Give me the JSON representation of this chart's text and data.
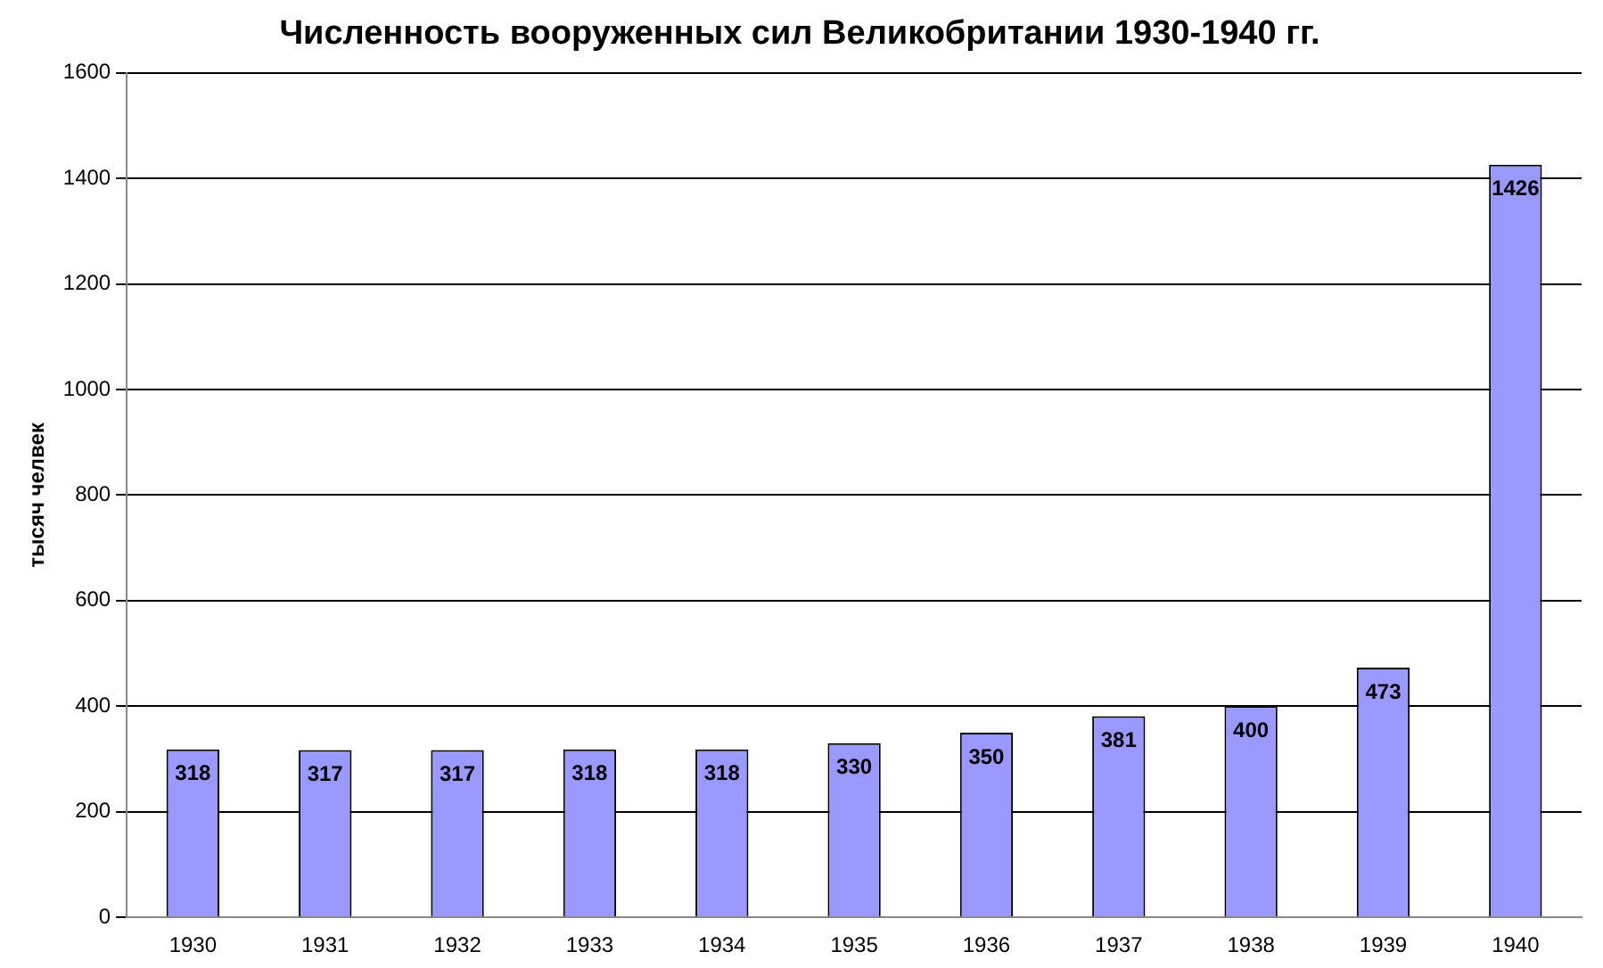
{
  "chart_data": {
    "type": "bar",
    "title": "Численность вооруженных сил Великобритании 1930-1940 гг.",
    "ylabel": "тысяч челвек",
    "categories": [
      "1930",
      "1931",
      "1932",
      "1933",
      "1934",
      "1935",
      "1936",
      "1937",
      "1938",
      "1939",
      "1940"
    ],
    "values": [
      318,
      317,
      317,
      318,
      318,
      330,
      350,
      381,
      400,
      473,
      1426
    ],
    "color": "#9999ff",
    "ylim": [
      0,
      1600
    ],
    "yticks": [
      0,
      200,
      400,
      600,
      800,
      1000,
      1200,
      1400,
      1600
    ],
    "grid": "y",
    "data_labels": true
  }
}
